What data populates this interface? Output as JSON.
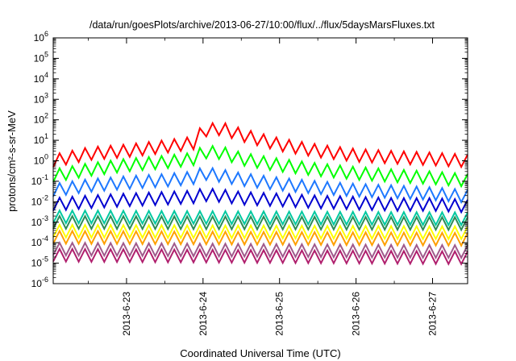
{
  "chart_data": {
    "type": "line",
    "title": "/data/run/goesPlots/archive/2013-06-27/10:00/flux/../flux/5daysMarsFluxes.txt",
    "xlabel": "Coordinated Universal Time (UTC)",
    "ylabel": "protons/cm²-s-sr-MeV",
    "xlim": [
      "2013-06-22 01:00",
      "2013-06-27 11:00"
    ],
    "ylim": [
      1e-06,
      1000000.0
    ],
    "yscale": "log",
    "grid": false,
    "x_ticks": [
      "2013-6-23",
      "2013-6-24",
      "2013-6-25",
      "2013-6-26",
      "2013-6-27"
    ],
    "y_tick_exponents": [
      -6,
      -5,
      -4,
      -3,
      -2,
      -1,
      0,
      1,
      2,
      3,
      4,
      5,
      6
    ],
    "y_tick_base": "10",
    "sawtooth_period_hours": 4,
    "series": [
      {
        "color": "#ff0000",
        "x": [
          "2013-06-22 01:00",
          "2013-06-22 12:00",
          "2013-06-23 00:00",
          "2013-06-23 12:00",
          "2013-06-23 21:00",
          "2013-06-24 00:00",
          "2013-06-24 06:00",
          "2013-06-24 12:00",
          "2013-06-25 00:00",
          "2013-06-25 12:00",
          "2013-06-26 00:00",
          "2013-06-26 12:00",
          "2013-06-27 00:00",
          "2013-06-27 11:00"
        ],
        "y": [
          0.8,
          1.8,
          2.5,
          4,
          6,
          25,
          30,
          15,
          5,
          2.5,
          1.5,
          1.2,
          1.0,
          0.8
        ]
      },
      {
        "color": "#00ff00",
        "x": [
          "2013-06-22 01:00",
          "2013-06-22 12:00",
          "2013-06-23 00:00",
          "2013-06-23 12:00",
          "2013-06-23 21:00",
          "2013-06-24 00:00",
          "2013-06-24 06:00",
          "2013-06-24 12:00",
          "2013-06-25 00:00",
          "2013-06-25 12:00",
          "2013-06-26 00:00",
          "2013-06-26 12:00",
          "2013-06-27 00:00",
          "2013-06-27 11:00"
        ],
        "y": [
          0.15,
          0.3,
          0.5,
          0.7,
          1.0,
          2.2,
          2.0,
          1.0,
          0.5,
          0.3,
          0.2,
          0.15,
          0.12,
          0.09
        ]
      },
      {
        "color": "#1e78ff",
        "x": [
          "2013-06-22 01:00",
          "2013-06-22 12:00",
          "2013-06-23 00:00",
          "2013-06-23 12:00",
          "2013-06-23 21:00",
          "2013-06-24 00:00",
          "2013-06-24 06:00",
          "2013-06-24 12:00",
          "2013-06-25 00:00",
          "2013-06-25 12:00",
          "2013-06-26 00:00",
          "2013-06-26 12:00",
          "2013-06-27 00:00",
          "2013-06-27 11:00"
        ],
        "y": [
          0.03,
          0.05,
          0.07,
          0.09,
          0.12,
          0.2,
          0.15,
          0.1,
          0.06,
          0.04,
          0.03,
          0.025,
          0.02,
          0.015
        ]
      },
      {
        "color": "#0000d0",
        "x": [
          "2013-06-22 01:00",
          "2013-06-22 12:00",
          "2013-06-23 00:00",
          "2013-06-23 12:00",
          "2013-06-23 21:00",
          "2013-06-24 00:00",
          "2013-06-24 06:00",
          "2013-06-24 12:00",
          "2013-06-25 00:00",
          "2013-06-25 12:00",
          "2013-06-26 00:00",
          "2013-06-26 12:00",
          "2013-06-27 00:00",
          "2013-06-27 11:00"
        ],
        "y": [
          0.006,
          0.008,
          0.01,
          0.012,
          0.014,
          0.018,
          0.016,
          0.012,
          0.01,
          0.008,
          0.007,
          0.006,
          0.006,
          0.005
        ]
      },
      {
        "color": "#00c8a0",
        "x": [
          "2013-06-22 01:00",
          "2013-06-27 11:00"
        ],
        "y": [
          0.0015,
          0.0012
        ]
      },
      {
        "color": "#2e8b57",
        "x": [
          "2013-06-22 01:00",
          "2013-06-27 11:00"
        ],
        "y": [
          0.0008,
          0.0007
        ]
      },
      {
        "color": "#ffff00",
        "x": [
          "2013-06-22 01:00",
          "2013-06-27 11:00"
        ],
        "y": [
          0.0003,
          0.00025
        ]
      },
      {
        "color": "#ffa000",
        "x": [
          "2013-06-22 01:00",
          "2013-06-27 11:00"
        ],
        "y": [
          0.00015,
          0.00012
        ]
      },
      {
        "color": "#a05a8c",
        "x": [
          "2013-06-22 01:00",
          "2013-06-27 11:00"
        ],
        "y": [
          4e-05,
          3e-05
        ]
      },
      {
        "color": "#b0206e",
        "x": [
          "2013-06-22 01:00",
          "2013-06-27 11:00"
        ],
        "y": [
          2e-05,
          1.5e-05
        ]
      }
    ]
  }
}
